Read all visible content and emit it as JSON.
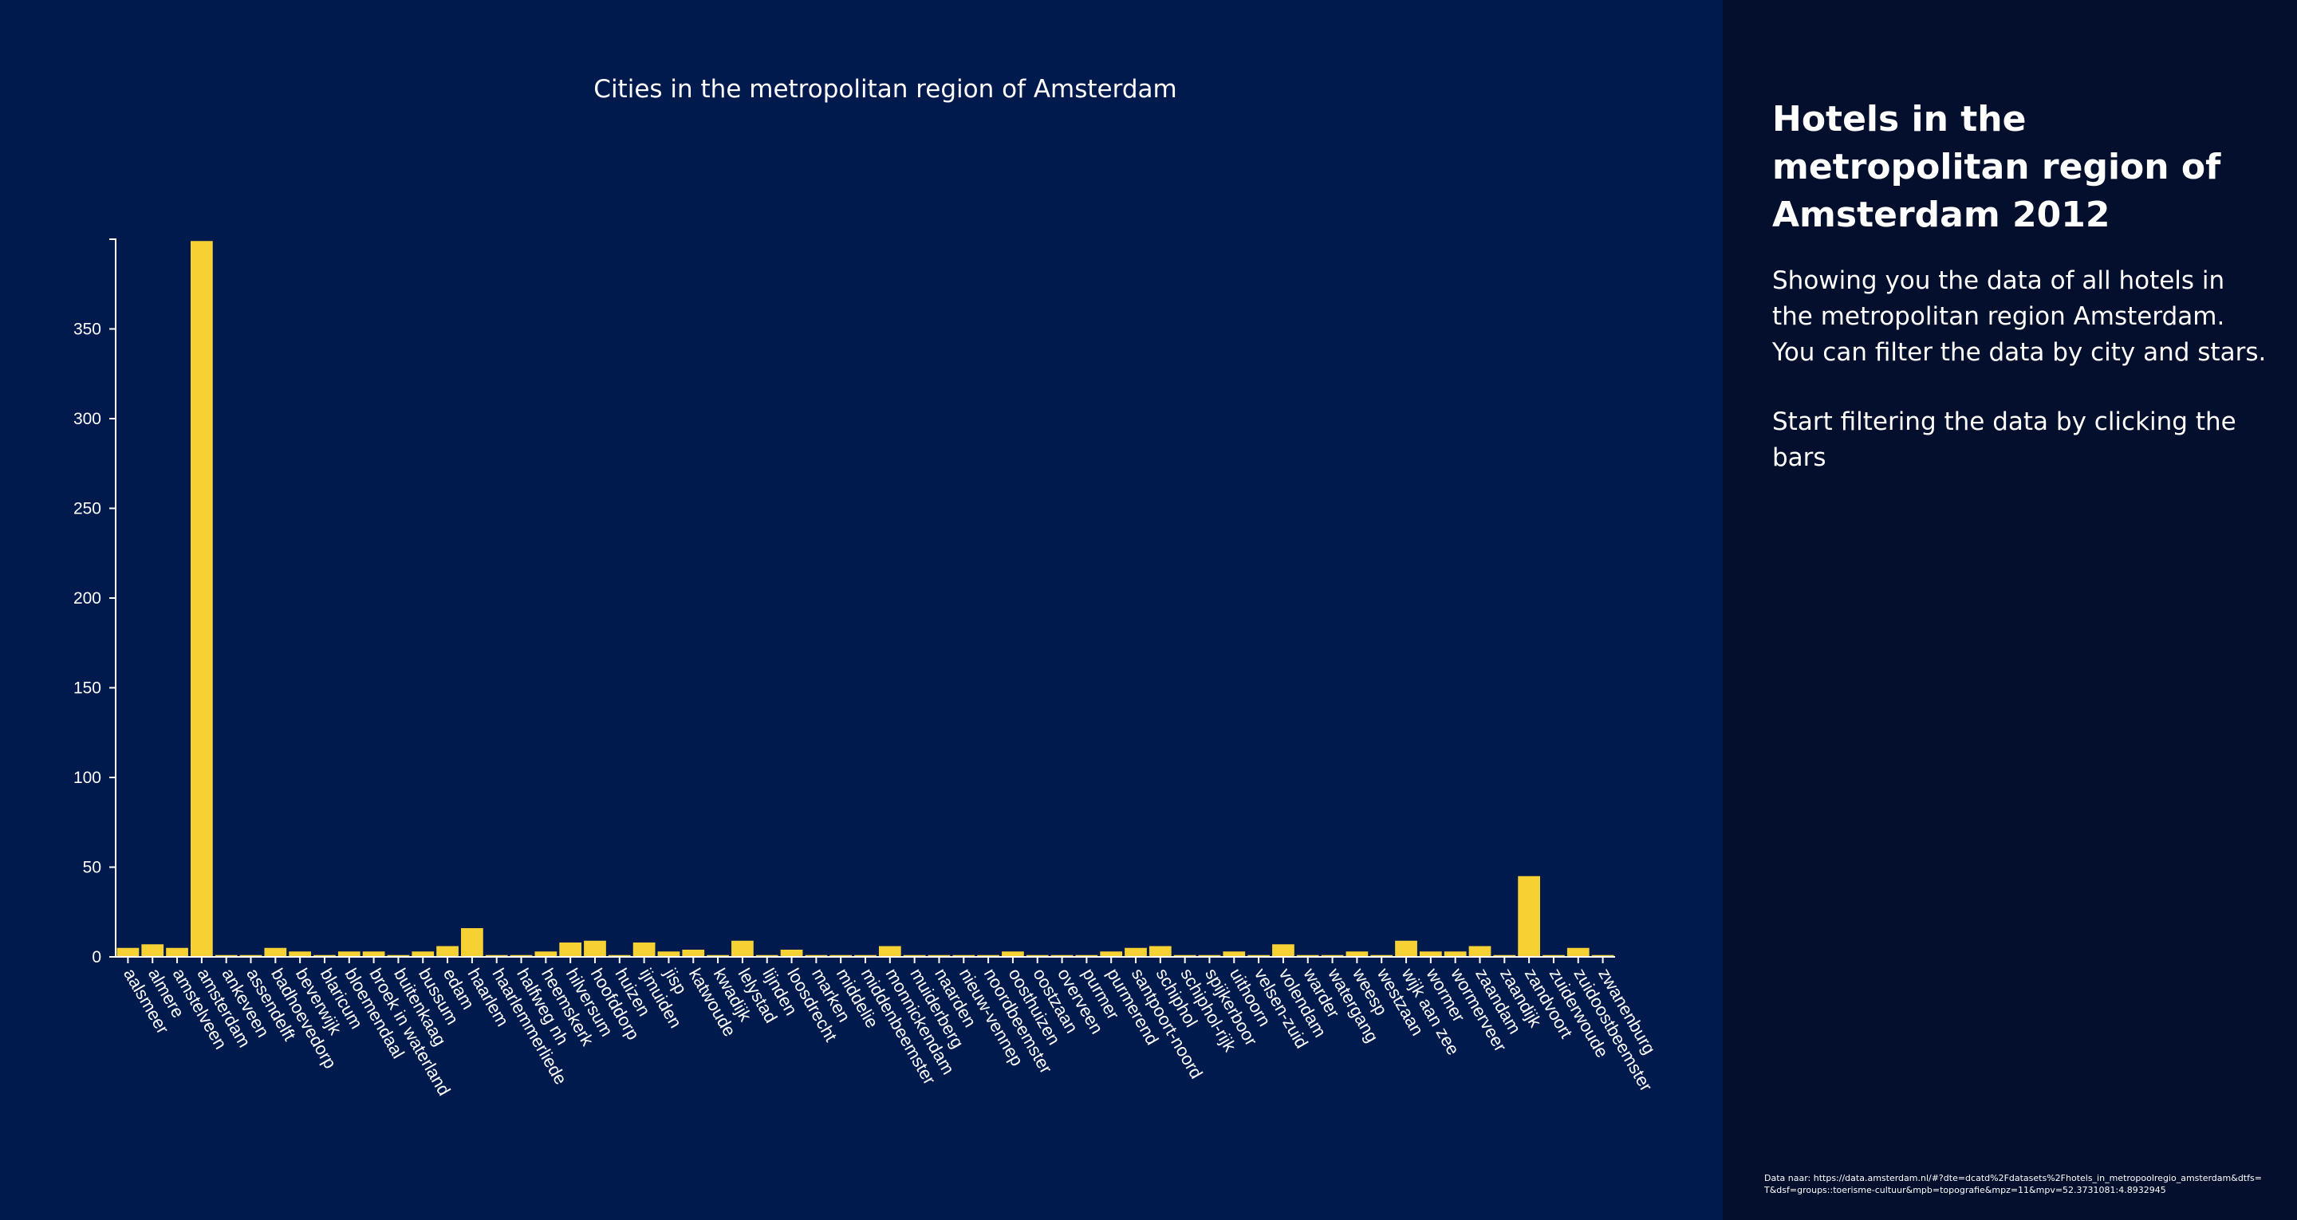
{
  "chart_data": {
    "type": "bar",
    "title": "Cities in the metropolitan region of Amsterdam",
    "categories": [
      "aalsmeer",
      "almere",
      "amstelveen",
      "amsterdam",
      "ankeveen",
      "assendelft",
      "badhoevedorp",
      "beverwijk",
      "blaricum",
      "bloemendaal",
      "broek in waterland",
      "buitenkaag",
      "bussum",
      "edam",
      "haarlem",
      "haarlemmerliede",
      "halfweg nh",
      "heemskerk",
      "hilversum",
      "hoofddorp",
      "huizen",
      "ijmuiden",
      "jisp",
      "katwoude",
      "kwadijk",
      "lelystad",
      "lijnden",
      "loosdrecht",
      "marken",
      "middelie",
      "middenbeemster",
      "monnickendam",
      "muiderberg",
      "naarden",
      "nieuw-vennep",
      "noordbeemster",
      "oosthuizen",
      "oostzaan",
      "overveen",
      "purmer",
      "purmerend",
      "santpoort-noord",
      "schiphol",
      "schiphol-rijk",
      "spijkerboor",
      "uithoorn",
      "velsen-zuid",
      "volendam",
      "warder",
      "watergang",
      "weesp",
      "westzaan",
      "wijk aan zee",
      "wormer",
      "wormerveer",
      "zaandam",
      "zaandijk",
      "zandvoort",
      "zuiderwoude",
      "zuidoostbeemster",
      "zwanenburg"
    ],
    "values": [
      5,
      7,
      5,
      399,
      1,
      1,
      5,
      3,
      1,
      3,
      3,
      1,
      3,
      6,
      16,
      1,
      1,
      3,
      8,
      9,
      1,
      8,
      3,
      4,
      1,
      9,
      1,
      4,
      1,
      1,
      1,
      6,
      1,
      1,
      1,
      1,
      3,
      1,
      1,
      1,
      3,
      5,
      6,
      1,
      1,
      3,
      1,
      7,
      1,
      1,
      3,
      1,
      9,
      3,
      3,
      6,
      1,
      45,
      1,
      5,
      1
    ],
    "ylim": [
      0,
      400
    ],
    "yticks": [
      0,
      50,
      100,
      150,
      200,
      250,
      300,
      350
    ],
    "grid": false,
    "legend": "none"
  },
  "sidebar": {
    "title": "Hotels in the metropolitan region of Amsterdam 2012",
    "description": "Showing you the data of all hotels in the metropolitan region Amsterdam. You can filter the data by city and stars.",
    "cta": "Start filtering the data by clicking the bars",
    "source": "Data naar: https://data.amsterdam.nl/#?dte=dcatd%2Fdatasets%2Fhotels_in_metropoolregio_amsterdam&dtfs=T&dsf=groups::toerisme-cultuur&mpb=topografie&mpz=11&mpv=52.3731081:4.8932945"
  },
  "colors": {
    "chart_background": "#011a4e",
    "sidebar_background": "#030f2d",
    "bar": "#f5d133",
    "text": "#ffffff"
  }
}
